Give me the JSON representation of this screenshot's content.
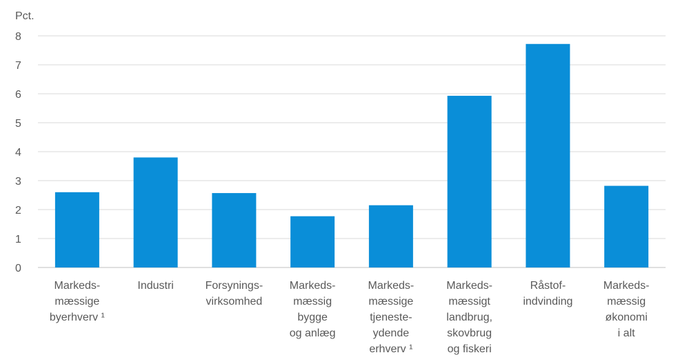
{
  "chart_data": {
    "type": "bar",
    "ylabel": "Pct.",
    "ylim": [
      0,
      8
    ],
    "yticks": [
      0,
      1,
      2,
      3,
      4,
      5,
      6,
      7,
      8
    ],
    "grid": true,
    "bar_color": "#0a8ed8",
    "grid_color": "#d9d9d9",
    "axis_color": "#bfbfbf",
    "categories": [
      [
        "Markeds-",
        "mæssige",
        "byerhverv ¹"
      ],
      [
        "Industri"
      ],
      [
        "Forsynings-",
        "virksomhed"
      ],
      [
        "Markeds-",
        "mæssig",
        "bygge",
        "og anlæg"
      ],
      [
        "Markeds-",
        "mæssige",
        "tjeneste-",
        "ydende",
        "erhverv ¹"
      ],
      [
        "Markeds-",
        "mæssigt",
        "landbrug,",
        "skovbrug",
        "og fiskeri"
      ],
      [
        "Råstof-",
        "indvinding"
      ],
      [
        "Markeds-",
        "mæssig",
        "økonomi",
        "i alt"
      ]
    ],
    "values": [
      2.6,
      3.8,
      2.57,
      1.77,
      2.15,
      5.93,
      7.72,
      2.82
    ]
  }
}
